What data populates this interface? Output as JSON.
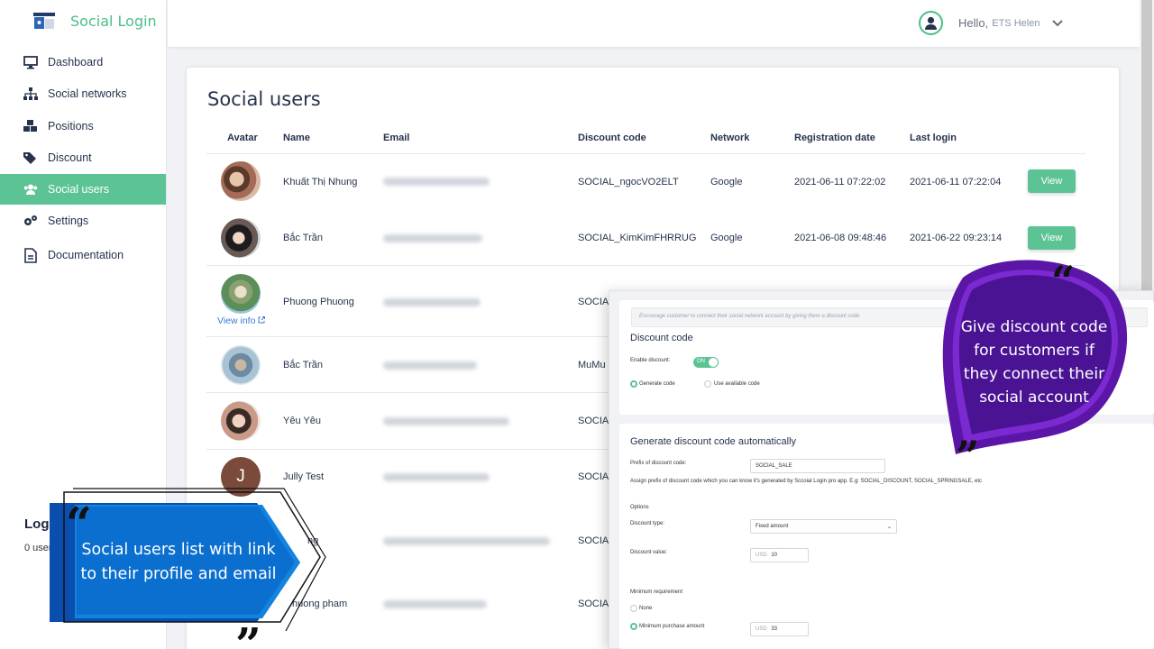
{
  "sidebar": {
    "brand": "Social Login",
    "items": [
      {
        "label": "Dashboard",
        "icon": "monitor-icon"
      },
      {
        "label": "Social networks",
        "icon": "network-icon"
      },
      {
        "label": "Positions",
        "icon": "cubes-icon"
      },
      {
        "label": "Discount",
        "icon": "tags-icon"
      },
      {
        "label": "Social users",
        "icon": "users-icon",
        "active": true
      },
      {
        "label": "Settings",
        "icon": "gears-icon"
      },
      {
        "label": "Documentation",
        "icon": "document-icon"
      }
    ],
    "stats_title": "Logi",
    "stats_count": "0 user"
  },
  "header": {
    "hello": "Hello,",
    "user_name": "ETS Helen"
  },
  "main": {
    "title": "Social users",
    "columns": [
      "Avatar",
      "Name",
      "Email",
      "Discount code",
      "Network",
      "Registration date",
      "Last login"
    ],
    "view_info": "View info",
    "rows": [
      {
        "name": "Khuất Thị Nhung",
        "discount": "SOCIAL_ngocVO2ELT",
        "network": "Google",
        "registered": "2021-06-11 07:22:02",
        "last_login": "2021-06-11 07:22:04",
        "action": "View"
      },
      {
        "name": "Bắc Trần",
        "discount": "SOCIAL_KimKimFHRRUG",
        "network": "Google",
        "registered": "2021-06-08 09:48:46",
        "last_login": "2021-06-22 09:23:14",
        "action": "View"
      },
      {
        "name": "Phuong Phuong",
        "discount": "SOCIAL"
      },
      {
        "name": "Bắc Trần",
        "discount": "MuMu"
      },
      {
        "name": "Yêu Yêu",
        "discount": "SOCIAL"
      },
      {
        "name": "Jully Test",
        "discount": "SOCIAL",
        "initial": "J"
      },
      {
        "name": "ng",
        "discount": "SOCIAL"
      },
      {
        "name": "huong pham",
        "discount": "SOCIAL"
      }
    ]
  },
  "discount_panel": {
    "hint": "Encourage customer to connect their social network account by giving them a discount code",
    "title": "Discount code",
    "enable_label": "Enable discount:",
    "toggle": "ON",
    "generate_code": "Generate code",
    "use_available": "Use available code",
    "auto_title": "Generate discount code automatically",
    "prefix_label": "Prefix of discount code:",
    "prefix_value": "SOCIAL_SALE",
    "prefix_help": "Assign prefix of discount code which you can know it's generated by Sccoial Login pro app. E.g: SOCIAL_DISCOUNT, SOCIAL_SPRINGSALE, etc",
    "options": "Options",
    "type_label": "Discount type:",
    "type_value": "Fixed amount",
    "value_label": "Discount value:",
    "currency": "USD",
    "value": "10",
    "min_req": "Minimum requirement",
    "none": "None",
    "min_purchase": "Minimum purchase amount",
    "min_value": "33"
  },
  "callouts": {
    "left": "Social users list with link to their profile and email",
    "right": "Give discount code for customers if they connect their social account"
  },
  "colors": {
    "accent": "#5cc394",
    "brand": "#4bbf86",
    "left_callout": "#0a6fd0",
    "right_callout": "#6a1bb0"
  }
}
